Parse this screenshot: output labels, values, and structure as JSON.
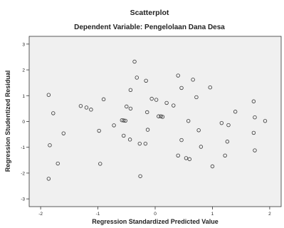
{
  "chart_data": {
    "type": "scatter",
    "title": "Scatterplot",
    "subtitle": "Dependent Variable: Pengelolaan Dana Desa",
    "xlabel": "Regression Standardized Predicted Value",
    "ylabel": "Regression Studentized Residual",
    "xlim": [
      -2.2,
      2.2
    ],
    "ylim": [
      -3.3,
      3.3
    ],
    "xticks": [
      -2,
      -1,
      0,
      1,
      2
    ],
    "yticks": [
      -3,
      -2,
      -1,
      0,
      1,
      2,
      3
    ],
    "grid": false,
    "colors": {
      "plot_background": "#f0f0f0",
      "marker": "#333333"
    },
    "points": [
      {
        "x": -1.86,
        "y": 1.03
      },
      {
        "x": -1.78,
        "y": 0.32
      },
      {
        "x": -1.84,
        "y": -0.92
      },
      {
        "x": -1.6,
        "y": -0.46
      },
      {
        "x": -1.7,
        "y": -1.63
      },
      {
        "x": -1.86,
        "y": -2.22
      },
      {
        "x": -1.3,
        "y": 0.6
      },
      {
        "x": -1.2,
        "y": 0.54
      },
      {
        "x": -1.12,
        "y": 0.46
      },
      {
        "x": -0.9,
        "y": 0.86
      },
      {
        "x": -0.98,
        "y": -0.36
      },
      {
        "x": -0.96,
        "y": -1.64
      },
      {
        "x": -0.72,
        "y": -0.15
      },
      {
        "x": -0.58,
        "y": 0.05
      },
      {
        "x": -0.55,
        "y": 0.04
      },
      {
        "x": -0.52,
        "y": 0.03
      },
      {
        "x": -0.5,
        "y": 0.58
      },
      {
        "x": -0.43,
        "y": 0.5
      },
      {
        "x": -0.43,
        "y": 1.22
      },
      {
        "x": -0.36,
        "y": 2.32
      },
      {
        "x": -0.32,
        "y": 1.7
      },
      {
        "x": -0.16,
        "y": 1.58
      },
      {
        "x": -0.55,
        "y": -0.55
      },
      {
        "x": -0.44,
        "y": -0.7
      },
      {
        "x": -0.27,
        "y": -0.86
      },
      {
        "x": -0.17,
        "y": -0.86
      },
      {
        "x": -0.13,
        "y": -0.32
      },
      {
        "x": -0.26,
        "y": -2.12
      },
      {
        "x": -0.14,
        "y": 0.36
      },
      {
        "x": -0.06,
        "y": 0.88
      },
      {
        "x": 0.02,
        "y": 0.84
      },
      {
        "x": 0.06,
        "y": 0.2
      },
      {
        "x": 0.1,
        "y": 0.2
      },
      {
        "x": 0.13,
        "y": 0.18
      },
      {
        "x": 0.2,
        "y": 0.72
      },
      {
        "x": 0.32,
        "y": 0.62
      },
      {
        "x": 0.4,
        "y": 1.78
      },
      {
        "x": 0.46,
        "y": 1.3
      },
      {
        "x": 0.58,
        "y": 0.02
      },
      {
        "x": 0.46,
        "y": -0.72
      },
      {
        "x": 0.4,
        "y": -1.32
      },
      {
        "x": 0.54,
        "y": -1.42
      },
      {
        "x": 0.6,
        "y": -1.46
      },
      {
        "x": 0.66,
        "y": 1.62
      },
      {
        "x": 0.72,
        "y": 0.94
      },
      {
        "x": 0.76,
        "y": -0.34
      },
      {
        "x": 0.8,
        "y": -0.98
      },
      {
        "x": 0.96,
        "y": 1.32
      },
      {
        "x": 1.0,
        "y": -1.74
      },
      {
        "x": 1.16,
        "y": -0.06
      },
      {
        "x": 1.22,
        "y": -1.32
      },
      {
        "x": 1.26,
        "y": -0.78
      },
      {
        "x": 1.28,
        "y": -0.14
      },
      {
        "x": 1.4,
        "y": 0.38
      },
      {
        "x": 1.72,
        "y": 0.78
      },
      {
        "x": 1.72,
        "y": -0.44
      },
      {
        "x": 1.74,
        "y": -1.12
      },
      {
        "x": 1.74,
        "y": 0.16
      },
      {
        "x": 1.92,
        "y": 0.02
      }
    ]
  }
}
